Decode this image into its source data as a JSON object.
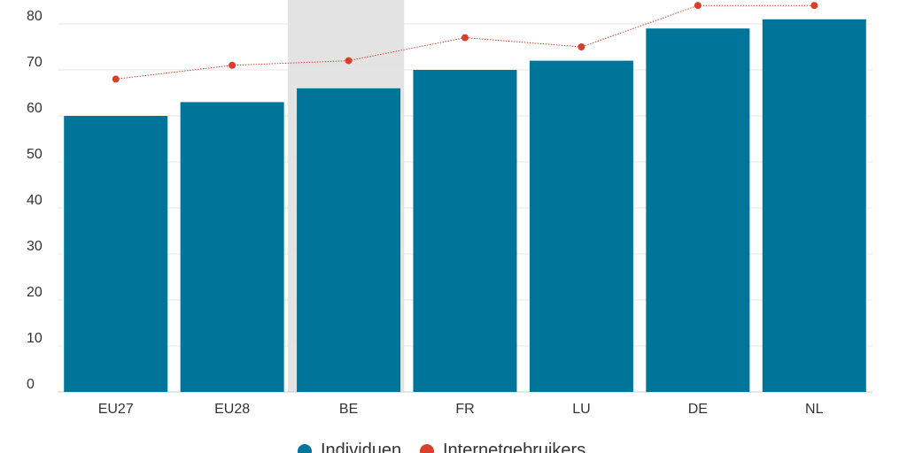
{
  "chart_data": {
    "type": "bar",
    "categories": [
      "EU27",
      "EU28",
      "BE",
      "FR",
      "LU",
      "DE",
      "NL"
    ],
    "highlighted_category": "BE",
    "series": [
      {
        "name": "Individuen",
        "type": "bar",
        "values": [
          60,
          63,
          66,
          70,
          72,
          79,
          81
        ]
      },
      {
        "name": "Internetgebruikers",
        "type": "line",
        "values": [
          68,
          71,
          72,
          77,
          75,
          84,
          84
        ]
      }
    ],
    "yticks": [
      "0",
      "10",
      "20",
      "30",
      "40",
      "50",
      "60",
      "70",
      "80"
    ],
    "ylim": [
      0,
      84
    ],
    "grid": true,
    "legend_position": "bottom-center",
    "colors": {
      "bar": "#00759a",
      "line": "#d9402b",
      "highlight_band": "#e3e3e3",
      "grid": "#e6e6e6"
    }
  }
}
